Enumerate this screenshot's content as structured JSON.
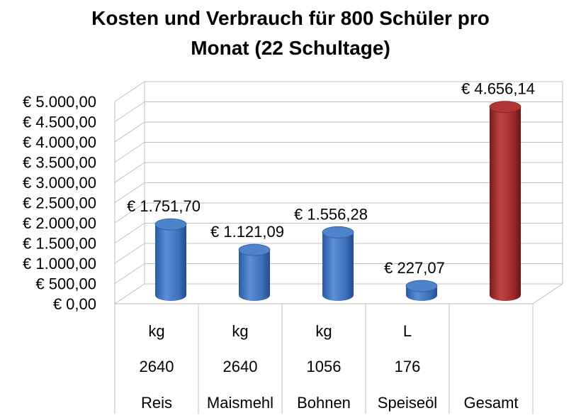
{
  "chart_data": {
    "type": "bar",
    "title_line1": "Kosten und Verbrauch für 800 Schüler pro",
    "title_line2": "Monat (22 Schultage)",
    "categories": [
      "Reis",
      "Maismehl",
      "Bohnen",
      "Speiseöl",
      "Gesamt"
    ],
    "values": [
      1751.7,
      1121.09,
      1556.28,
      227.07,
      4656.14
    ],
    "data_labels": [
      "€ 1.751,70",
      "€ 1.121,09",
      "€ 1.556,28",
      "€ 227,07",
      "€ 4.656,14"
    ],
    "units": [
      "kg",
      "kg",
      "kg",
      "L",
      ""
    ],
    "quantities": [
      "2640",
      "2640",
      "1056",
      "176",
      ""
    ],
    "ylim": [
      0,
      5000
    ],
    "yticks": [
      "€ 0,00",
      "€ 500,00",
      "€ 1.000,00",
      "€ 1.500,00",
      "€ 2.000,00",
      "€ 2.500,00",
      "€ 3.000,00",
      "€ 3.500,00",
      "€ 4.000,00",
      "€ 4.500,00",
      "€ 5.000,00"
    ],
    "grid": true,
    "bar_shape": "cylinder-3d",
    "colors": {
      "default_bar": "#3f73c0",
      "total_bar": "#a32a2a",
      "grid": "#bfbfbf"
    }
  }
}
